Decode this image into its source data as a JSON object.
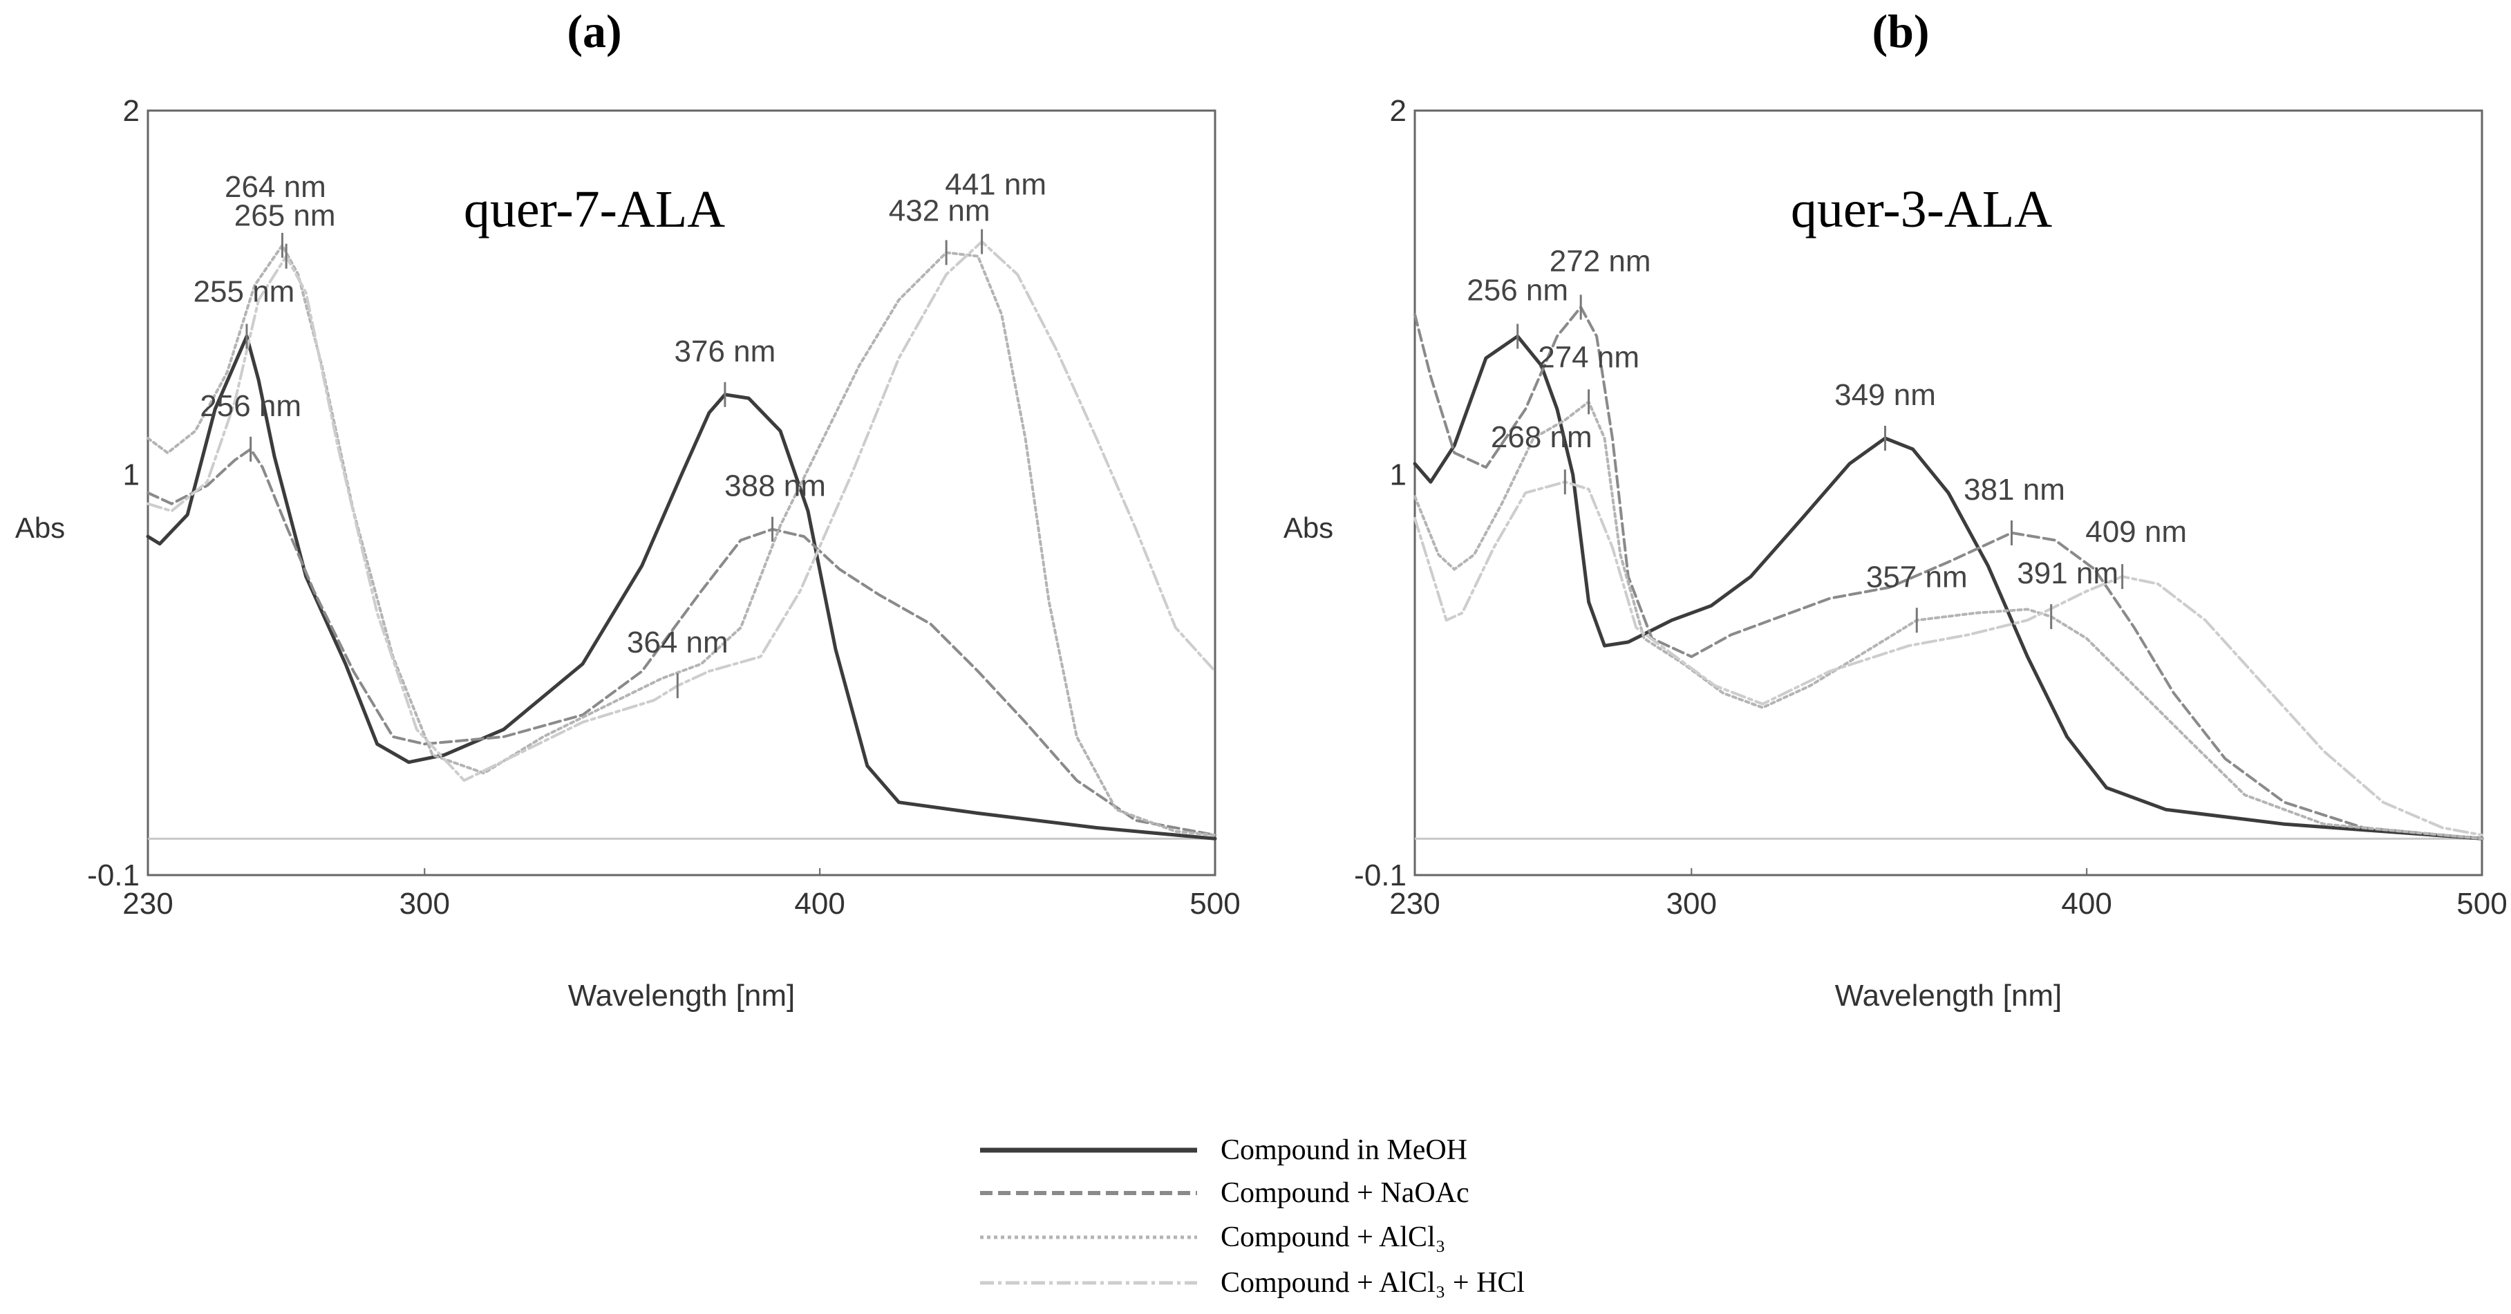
{
  "figure": {
    "legend": [
      {
        "label": "Compound in MeOH",
        "color": "#3c3c3c",
        "dash": "solid"
      },
      {
        "label": "Compound + NaOAc",
        "color": "#8a8a8a",
        "dash": "dashed"
      },
      {
        "label": "Compound + AlCl₃",
        "color": "#b4b4b4",
        "dash": "dotted"
      },
      {
        "label": "Compound + AlCl₃ + HCl",
        "color": "#cdcdcd",
        "dash": "dashdot"
      }
    ]
  },
  "chart_data": [
    {
      "type": "line",
      "panel_label": "(a)",
      "title": "quer-7-ALA",
      "xlabel": "Wavelength [nm]",
      "ylabel": "Abs",
      "xlim": [
        230,
        500
      ],
      "ylim": [
        -0.1,
        2
      ],
      "x_ticks": [
        230,
        300,
        400,
        500
      ],
      "y_ticks": [
        -0.1,
        1,
        2
      ],
      "baseline": 0,
      "series": [
        {
          "name": "Compound in MeOH",
          "points": [
            [
              230,
              0.83
            ],
            [
              233,
              0.81
            ],
            [
              240,
              0.89
            ],
            [
              247,
              1.18
            ],
            [
              255,
              1.38
            ],
            [
              258,
              1.26
            ],
            [
              262,
              1.05
            ],
            [
              270,
              0.72
            ],
            [
              280,
              0.48
            ],
            [
              288,
              0.26
            ],
            [
              296,
              0.21
            ],
            [
              305,
              0.23
            ],
            [
              320,
              0.3
            ],
            [
              340,
              0.48
            ],
            [
              355,
              0.75
            ],
            [
              365,
              1.0
            ],
            [
              372,
              1.17
            ],
            [
              376,
              1.22
            ],
            [
              382,
              1.21
            ],
            [
              390,
              1.12
            ],
            [
              397,
              0.9
            ],
            [
              404,
              0.52
            ],
            [
              412,
              0.2
            ],
            [
              420,
              0.1
            ],
            [
              440,
              0.07
            ],
            [
              470,
              0.03
            ],
            [
              500,
              0.0
            ]
          ]
        },
        {
          "name": "Compound + NaOAc",
          "points": [
            [
              230,
              0.95
            ],
            [
              236,
              0.92
            ],
            [
              245,
              0.97
            ],
            [
              252,
              1.04
            ],
            [
              256,
              1.07
            ],
            [
              259,
              1.02
            ],
            [
              265,
              0.86
            ],
            [
              272,
              0.68
            ],
            [
              282,
              0.46
            ],
            [
              292,
              0.28
            ],
            [
              300,
              0.26
            ],
            [
              320,
              0.28
            ],
            [
              340,
              0.34
            ],
            [
              355,
              0.46
            ],
            [
              370,
              0.68
            ],
            [
              380,
              0.82
            ],
            [
              388,
              0.85
            ],
            [
              396,
              0.83
            ],
            [
              405,
              0.74
            ],
            [
              415,
              0.67
            ],
            [
              428,
              0.59
            ],
            [
              440,
              0.46
            ],
            [
              452,
              0.32
            ],
            [
              465,
              0.16
            ],
            [
              480,
              0.05
            ],
            [
              500,
              0.01
            ]
          ]
        },
        {
          "name": "Compound + AlCl₃",
          "points": [
            [
              230,
              1.1
            ],
            [
              235,
              1.06
            ],
            [
              242,
              1.12
            ],
            [
              250,
              1.28
            ],
            [
              257,
              1.52
            ],
            [
              264,
              1.63
            ],
            [
              268,
              1.55
            ],
            [
              274,
              1.3
            ],
            [
              282,
              0.9
            ],
            [
              292,
              0.5
            ],
            [
              302,
              0.23
            ],
            [
              315,
              0.18
            ],
            [
              330,
              0.28
            ],
            [
              345,
              0.36
            ],
            [
              360,
              0.44
            ],
            [
              370,
              0.48
            ],
            [
              380,
              0.58
            ],
            [
              390,
              0.86
            ],
            [
              400,
              1.08
            ],
            [
              410,
              1.3
            ],
            [
              420,
              1.48
            ],
            [
              432,
              1.61
            ],
            [
              440,
              1.6
            ],
            [
              446,
              1.44
            ],
            [
              452,
              1.1
            ],
            [
              458,
              0.65
            ],
            [
              465,
              0.28
            ],
            [
              475,
              0.08
            ],
            [
              490,
              0.02
            ],
            [
              500,
              0.01
            ]
          ]
        },
        {
          "name": "Compound + AlCl₃ + HCl",
          "points": [
            [
              230,
              0.92
            ],
            [
              236,
              0.9
            ],
            [
              245,
              0.98
            ],
            [
              252,
              1.2
            ],
            [
              258,
              1.48
            ],
            [
              265,
              1.6
            ],
            [
              270,
              1.5
            ],
            [
              278,
              1.08
            ],
            [
              288,
              0.62
            ],
            [
              298,
              0.3
            ],
            [
              310,
              0.16
            ],
            [
              325,
              0.24
            ],
            [
              340,
              0.32
            ],
            [
              358,
              0.38
            ],
            [
              364,
              0.42
            ],
            [
              372,
              0.46
            ],
            [
              385,
              0.5
            ],
            [
              395,
              0.68
            ],
            [
              408,
              1.0
            ],
            [
              420,
              1.32
            ],
            [
              432,
              1.55
            ],
            [
              441,
              1.64
            ],
            [
              450,
              1.55
            ],
            [
              460,
              1.34
            ],
            [
              470,
              1.1
            ],
            [
              480,
              0.85
            ],
            [
              490,
              0.58
            ],
            [
              500,
              0.46
            ]
          ]
        }
      ],
      "annotations": [
        {
          "label": "264 nm",
          "x": 264,
          "y": 1.63
        },
        {
          "label": "265 nm",
          "x": 265,
          "y": 1.6
        },
        {
          "label": "255 nm",
          "x": 255,
          "y": 1.38
        },
        {
          "label": "256 nm",
          "x": 256,
          "y": 1.07
        },
        {
          "label": "376 nm",
          "x": 376,
          "y": 1.22
        },
        {
          "label": "388 nm",
          "x": 388,
          "y": 0.85
        },
        {
          "label": "364 nm",
          "x": 364,
          "y": 0.42
        },
        {
          "label": "432 nm",
          "x": 432,
          "y": 1.61
        },
        {
          "label": "441 nm",
          "x": 441,
          "y": 1.64
        }
      ]
    },
    {
      "type": "line",
      "panel_label": "(b)",
      "title": "quer-3-ALA",
      "xlabel": "Wavelength [nm]",
      "ylabel": "Abs",
      "xlim": [
        230,
        500
      ],
      "ylim": [
        -0.1,
        2
      ],
      "x_ticks": [
        230,
        300,
        400,
        500
      ],
      "y_ticks": [
        -0.1,
        1,
        2
      ],
      "baseline": 0,
      "series": [
        {
          "name": "Compound in MeOH",
          "points": [
            [
              230,
              1.03
            ],
            [
              234,
              0.98
            ],
            [
              240,
              1.08
            ],
            [
              248,
              1.32
            ],
            [
              256,
              1.38
            ],
            [
              262,
              1.3
            ],
            [
              266,
              1.18
            ],
            [
              270,
              1.0
            ],
            [
              274,
              0.65
            ],
            [
              278,
              0.53
            ],
            [
              284,
              0.54
            ],
            [
              295,
              0.6
            ],
            [
              305,
              0.64
            ],
            [
              315,
              0.72
            ],
            [
              328,
              0.88
            ],
            [
              340,
              1.03
            ],
            [
              349,
              1.1
            ],
            [
              356,
              1.07
            ],
            [
              365,
              0.95
            ],
            [
              375,
              0.75
            ],
            [
              385,
              0.5
            ],
            [
              395,
              0.28
            ],
            [
              405,
              0.14
            ],
            [
              420,
              0.08
            ],
            [
              450,
              0.04
            ],
            [
              500,
              0.0
            ]
          ]
        },
        {
          "name": "Compound + NaOAc",
          "points": [
            [
              230,
              1.44
            ],
            [
              234,
              1.27
            ],
            [
              240,
              1.06
            ],
            [
              248,
              1.02
            ],
            [
              258,
              1.18
            ],
            [
              266,
              1.38
            ],
            [
              272,
              1.46
            ],
            [
              276,
              1.38
            ],
            [
              280,
              1.1
            ],
            [
              284,
              0.72
            ],
            [
              290,
              0.55
            ],
            [
              300,
              0.5
            ],
            [
              310,
              0.56
            ],
            [
              320,
              0.6
            ],
            [
              335,
              0.66
            ],
            [
              350,
              0.69
            ],
            [
              365,
              0.76
            ],
            [
              381,
              0.84
            ],
            [
              392,
              0.82
            ],
            [
              402,
              0.74
            ],
            [
              412,
              0.58
            ],
            [
              422,
              0.4
            ],
            [
              435,
              0.22
            ],
            [
              450,
              0.1
            ],
            [
              470,
              0.03
            ],
            [
              500,
              0.0
            ]
          ]
        },
        {
          "name": "Compound + AlCl₃",
          "points": [
            [
              230,
              0.94
            ],
            [
              236,
              0.78
            ],
            [
              240,
              0.74
            ],
            [
              245,
              0.78
            ],
            [
              252,
              0.92
            ],
            [
              260,
              1.1
            ],
            [
              268,
              1.15
            ],
            [
              274,
              1.2
            ],
            [
              278,
              1.1
            ],
            [
              282,
              0.78
            ],
            [
              288,
              0.55
            ],
            [
              298,
              0.48
            ],
            [
              308,
              0.4
            ],
            [
              318,
              0.36
            ],
            [
              330,
              0.42
            ],
            [
              345,
              0.52
            ],
            [
              357,
              0.6
            ],
            [
              372,
              0.62
            ],
            [
              385,
              0.63
            ],
            [
              391,
              0.61
            ],
            [
              400,
              0.55
            ],
            [
              412,
              0.42
            ],
            [
              425,
              0.28
            ],
            [
              440,
              0.12
            ],
            [
              460,
              0.04
            ],
            [
              500,
              0.0
            ]
          ]
        },
        {
          "name": "Compound + AlCl₃ + HCl",
          "points": [
            [
              230,
              0.88
            ],
            [
              234,
              0.74
            ],
            [
              238,
              0.6
            ],
            [
              242,
              0.62
            ],
            [
              250,
              0.8
            ],
            [
              258,
              0.95
            ],
            [
              268,
              0.98
            ],
            [
              274,
              0.96
            ],
            [
              280,
              0.8
            ],
            [
              286,
              0.58
            ],
            [
              296,
              0.5
            ],
            [
              306,
              0.42
            ],
            [
              318,
              0.37
            ],
            [
              335,
              0.46
            ],
            [
              355,
              0.53
            ],
            [
              370,
              0.56
            ],
            [
              385,
              0.6
            ],
            [
              400,
              0.68
            ],
            [
              409,
              0.72
            ],
            [
              418,
              0.7
            ],
            [
              430,
              0.6
            ],
            [
              445,
              0.42
            ],
            [
              460,
              0.24
            ],
            [
              475,
              0.1
            ],
            [
              490,
              0.03
            ],
            [
              500,
              0.01
            ]
          ]
        }
      ],
      "annotations": [
        {
          "label": "256 nm",
          "x": 256,
          "y": 1.38
        },
        {
          "label": "272 nm",
          "x": 272,
          "y": 1.46
        },
        {
          "label": "274 nm",
          "x": 274,
          "y": 1.2
        },
        {
          "label": "268 nm",
          "x": 268,
          "y": 0.98
        },
        {
          "label": "349 nm",
          "x": 349,
          "y": 1.1
        },
        {
          "label": "381 nm",
          "x": 381,
          "y": 0.84
        },
        {
          "label": "409 nm",
          "x": 409,
          "y": 0.72
        },
        {
          "label": "357 nm",
          "x": 357,
          "y": 0.6
        },
        {
          "label": "391 nm",
          "x": 391,
          "y": 0.61
        }
      ]
    }
  ]
}
